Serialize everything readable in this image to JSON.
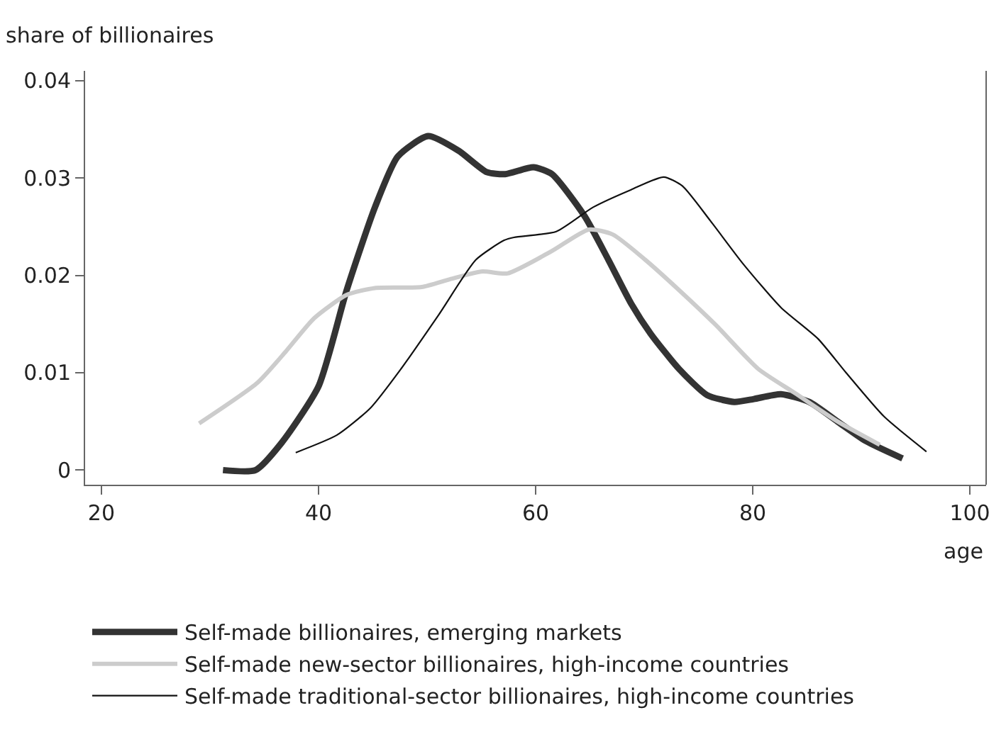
{
  "chart_data": {
    "type": "line",
    "ylabel": "share of billionaires",
    "xlabel": "age",
    "xlim": [
      18.5,
      101.5
    ],
    "xticks": [
      20,
      40,
      60,
      80,
      100
    ],
    "ylim": [
      -0.0015,
      0.041
    ],
    "yticks": [
      0,
      0.01,
      0.02,
      0.03,
      0.04
    ],
    "legend": "bottom",
    "marker": "none",
    "line_style": "solid",
    "series": [
      {
        "name": "Self-made billionaires, emerging markets",
        "color": "#333333",
        "x": [
          31.2,
          34.2,
          36.6,
          40.0,
          42.6,
          45.2,
          47.3,
          50.1,
          52.9,
          55.5,
          57.2,
          59.8,
          61.5,
          64.5,
          66.7,
          68.8,
          70.6,
          73.2,
          75.8,
          78.3,
          80.1,
          82.6,
          85.2,
          87.8,
          90.4,
          93.8
        ],
        "values": [
          0,
          0,
          0.0028,
          0.0086,
          0.0185,
          0.027,
          0.0322,
          0.0343,
          0.0328,
          0.0306,
          0.0304,
          0.0311,
          0.0304,
          0.0261,
          0.0216,
          0.0171,
          0.014,
          0.0104,
          0.0077,
          0.007,
          0.0073,
          0.0078,
          0.007,
          0.005,
          0.003,
          0.0012
        ]
      },
      {
        "name": "Self-made new-sector billionaires, high-income countries",
        "color": "#cccccc",
        "x": [
          29.0,
          34.4,
          37.0,
          39.6,
          42.6,
          45.2,
          49.5,
          52.1,
          55.1,
          57.4,
          61.5,
          64.9,
          67.1,
          70.1,
          73.2,
          76.6,
          80.5,
          83.9,
          87.8,
          91.7
        ],
        "values": [
          0.0048,
          0.009,
          0.0122,
          0.0156,
          0.018,
          0.0187,
          0.0188,
          0.0196,
          0.0204,
          0.0202,
          0.0225,
          0.0247,
          0.0242,
          0.0216,
          0.0185,
          0.0149,
          0.0104,
          0.0079,
          0.005,
          0.0026
        ]
      },
      {
        "name": "Self-made traditional-sector billionaires, high-income countries",
        "color": "#111111",
        "x": [
          37.9,
          41.7,
          44.8,
          47.6,
          51.1,
          54.5,
          57.1,
          58.0,
          61.9,
          65.3,
          68.8,
          71.8,
          73.5,
          76.1,
          79.1,
          82.6,
          86.0,
          88.6,
          92.1,
          96.0
        ],
        "values": [
          0.0018,
          0.0036,
          0.0064,
          0.0104,
          0.016,
          0.0216,
          0.0236,
          0.0239,
          0.0245,
          0.027,
          0.0288,
          0.0301,
          0.0292,
          0.0256,
          0.0212,
          0.0167,
          0.0135,
          0.01,
          0.0055,
          0.0019
        ]
      }
    ]
  }
}
